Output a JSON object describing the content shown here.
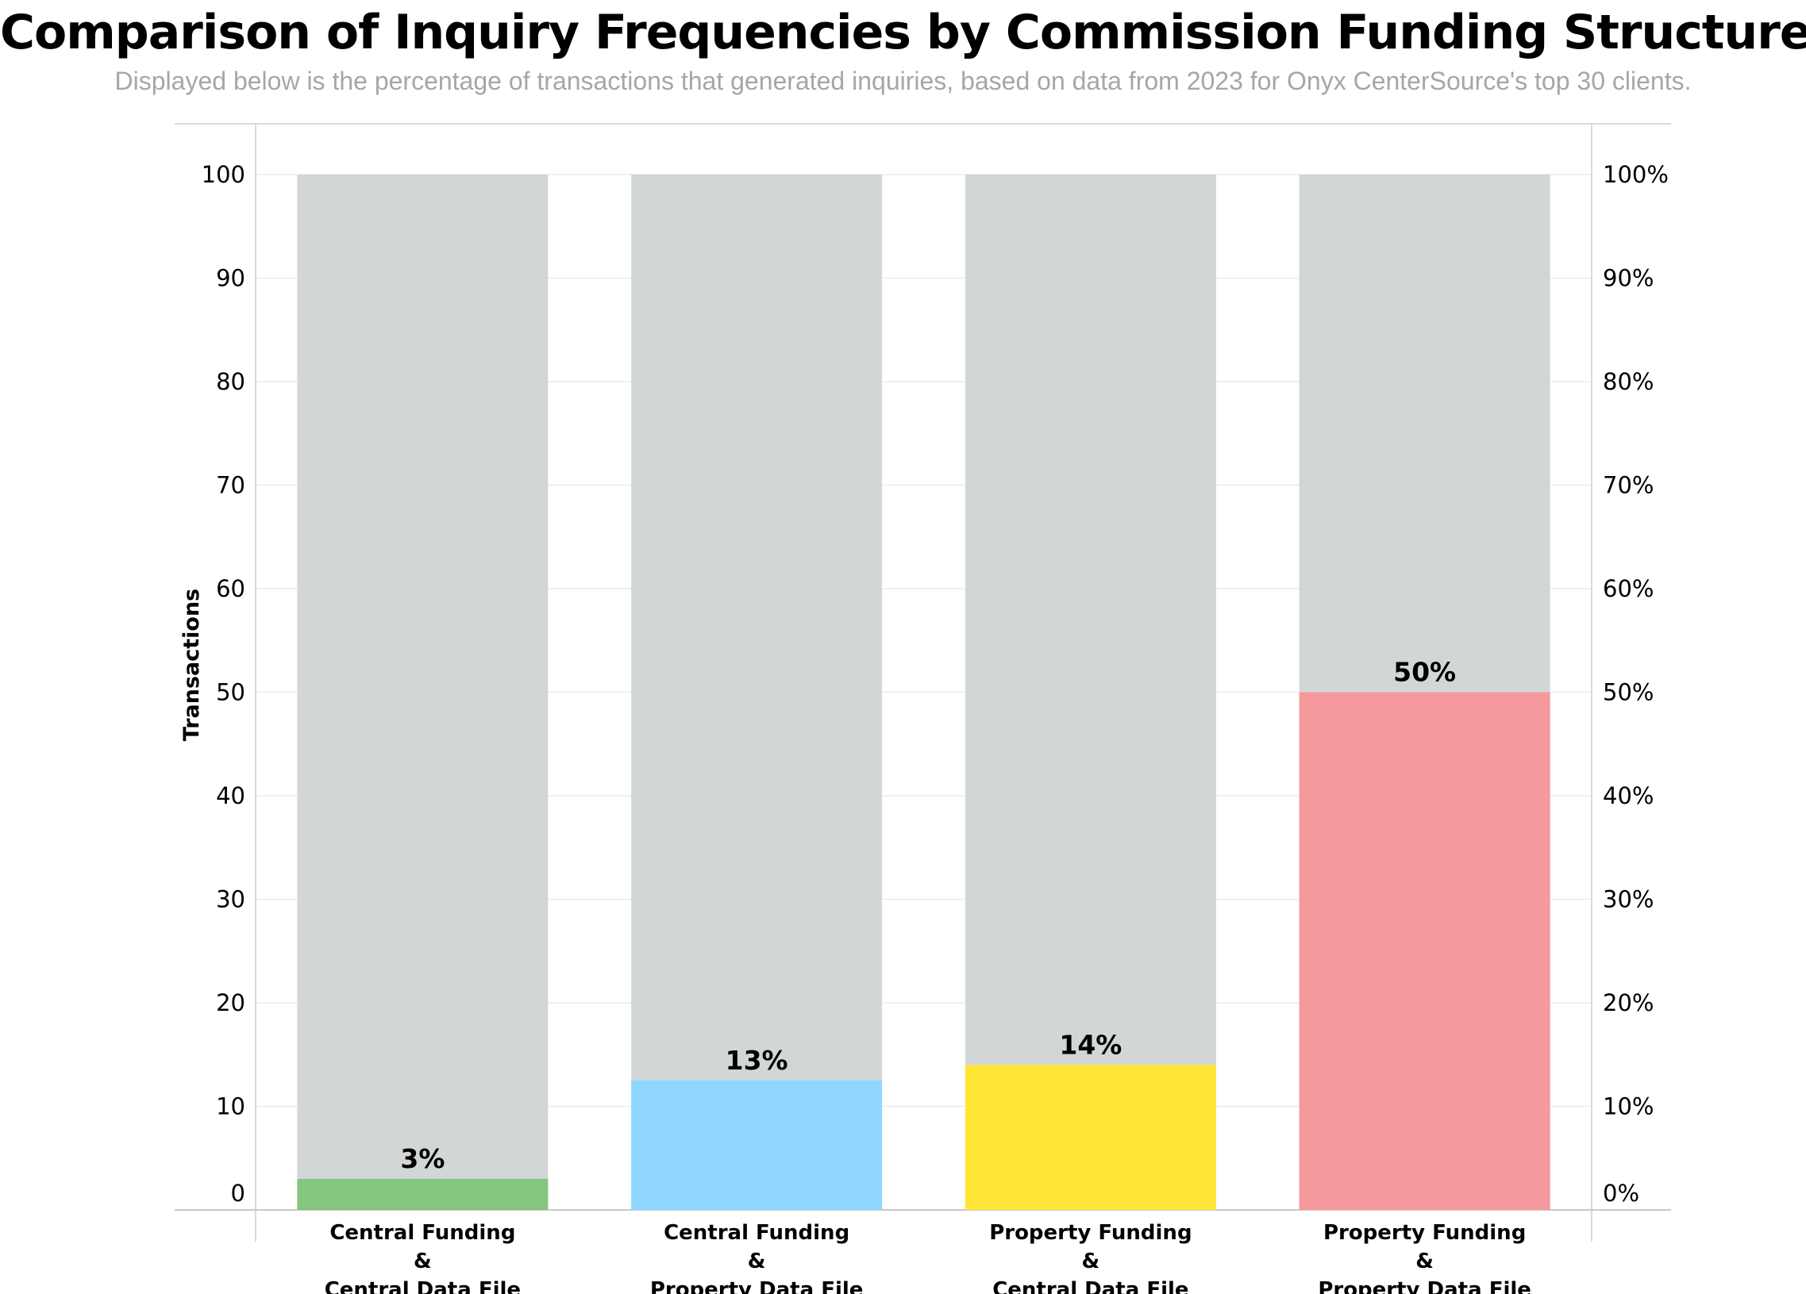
{
  "title": "Comparison of Inquiry Frequencies by Commission Funding Structure",
  "subtitle": "Displayed below is the percentage of transactions that generated inquiries, based on data from 2023 for Onyx CenterSource's top 30 clients.",
  "chart_data": {
    "type": "bar",
    "stacked": true,
    "categories": [
      [
        "Central Funding",
        "&",
        "Central Data File"
      ],
      [
        "Central Funding",
        "&",
        "Property Data File"
      ],
      [
        "Property Funding",
        "&",
        "Central Data File"
      ],
      [
        "Property Funding",
        "&",
        "Property Data File"
      ]
    ],
    "values": [
      3,
      12.5,
      14,
      50
    ],
    "data_labels": [
      "3%",
      "13%",
      "14%",
      "50%"
    ],
    "total": 100,
    "colors": [
      "#84c57f",
      "#8fd7fd",
      "#fee637",
      "#f5999d"
    ],
    "background_color": "#d2d6d7",
    "ylabel": "Transactions",
    "ylim": [
      0,
      100
    ],
    "y_ticks": [
      0,
      10,
      20,
      30,
      40,
      50,
      60,
      70,
      80,
      90,
      100
    ],
    "y2_ticks": [
      "0%",
      "10%",
      "20%",
      "30%",
      "40%",
      "50%",
      "60%",
      "70%",
      "80%",
      "90%",
      "100%"
    ],
    "grid": true,
    "legend": "none"
  }
}
